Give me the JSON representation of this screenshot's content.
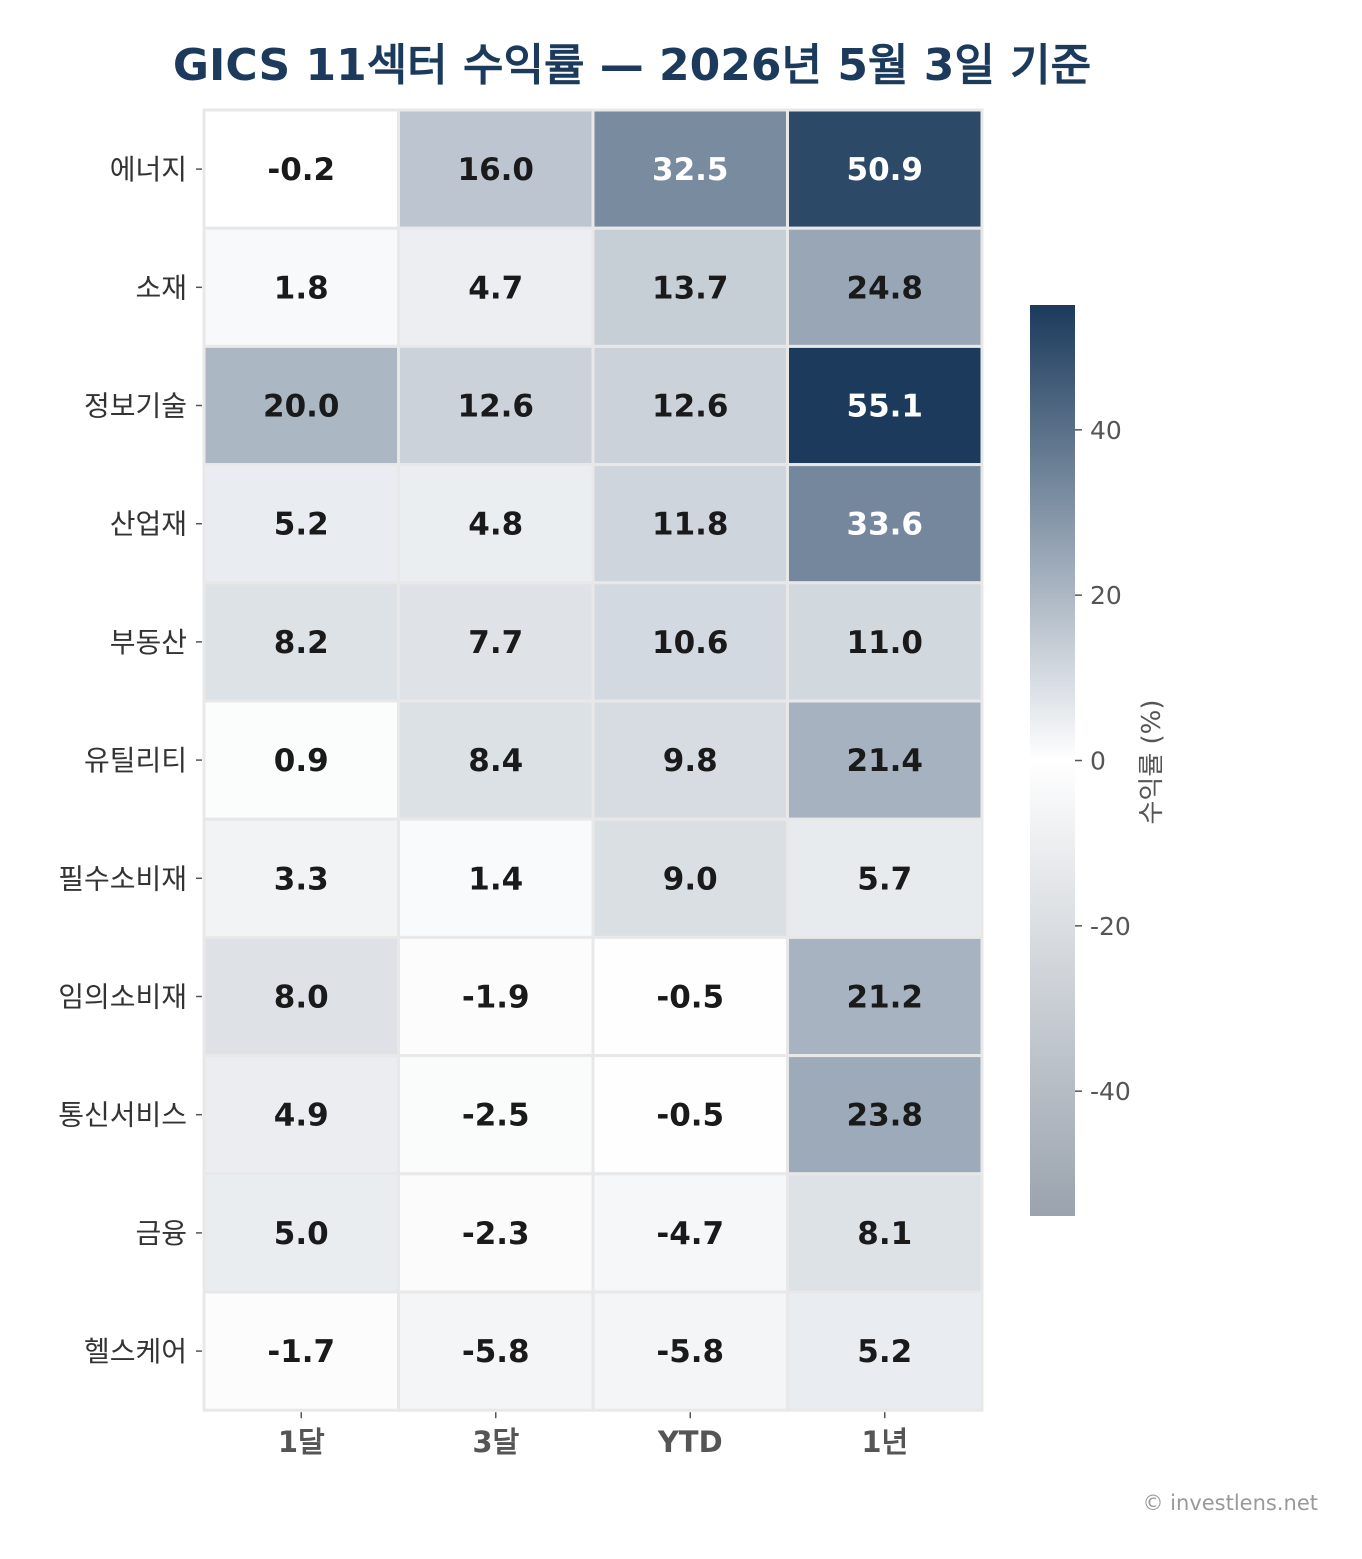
{
  "chart_data": {
    "type": "heatmap",
    "title": "GICS 11섹터 수익률 — 2026년 5월 3일 기준",
    "columns": [
      "1달",
      "3달",
      "YTD",
      "1년"
    ],
    "rows": [
      "에너지",
      "소재",
      "정보기술",
      "산업재",
      "부동산",
      "유틸리티",
      "필수소비재",
      "임의소비재",
      "통신서비스",
      "금융",
      "헬스케어"
    ],
    "values": [
      [
        -0.2,
        16.0,
        32.5,
        50.9
      ],
      [
        1.8,
        4.7,
        13.7,
        24.8
      ],
      [
        20.0,
        12.6,
        12.6,
        55.1
      ],
      [
        5.2,
        4.8,
        11.8,
        33.6
      ],
      [
        8.2,
        7.7,
        10.6,
        11.0
      ],
      [
        0.9,
        8.4,
        9.8,
        21.4
      ],
      [
        3.3,
        1.4,
        9.0,
        5.7
      ],
      [
        8.0,
        -1.9,
        -0.5,
        21.2
      ],
      [
        4.9,
        -2.5,
        -0.5,
        23.8
      ],
      [
        5.0,
        -2.3,
        -4.7,
        8.1
      ],
      [
        -1.7,
        -5.8,
        -5.8,
        5.2
      ]
    ],
    "colorbar": {
      "label": "수익률 (%)",
      "ticks": [
        40,
        20,
        0,
        -20,
        -40
      ],
      "range": [
        -55.1,
        55.1
      ]
    },
    "colors": {
      "title": "#1b3a5c",
      "positive": "#1b3a5c",
      "negative": "#9aa3ae",
      "neutral": "#ffffff",
      "grid": "#e8e8e8",
      "dark_text": "#1a1a1a",
      "light_text": "#ffffff"
    },
    "grid": true,
    "legend": "right"
  },
  "footer": {
    "credit": "© investlens.net"
  }
}
